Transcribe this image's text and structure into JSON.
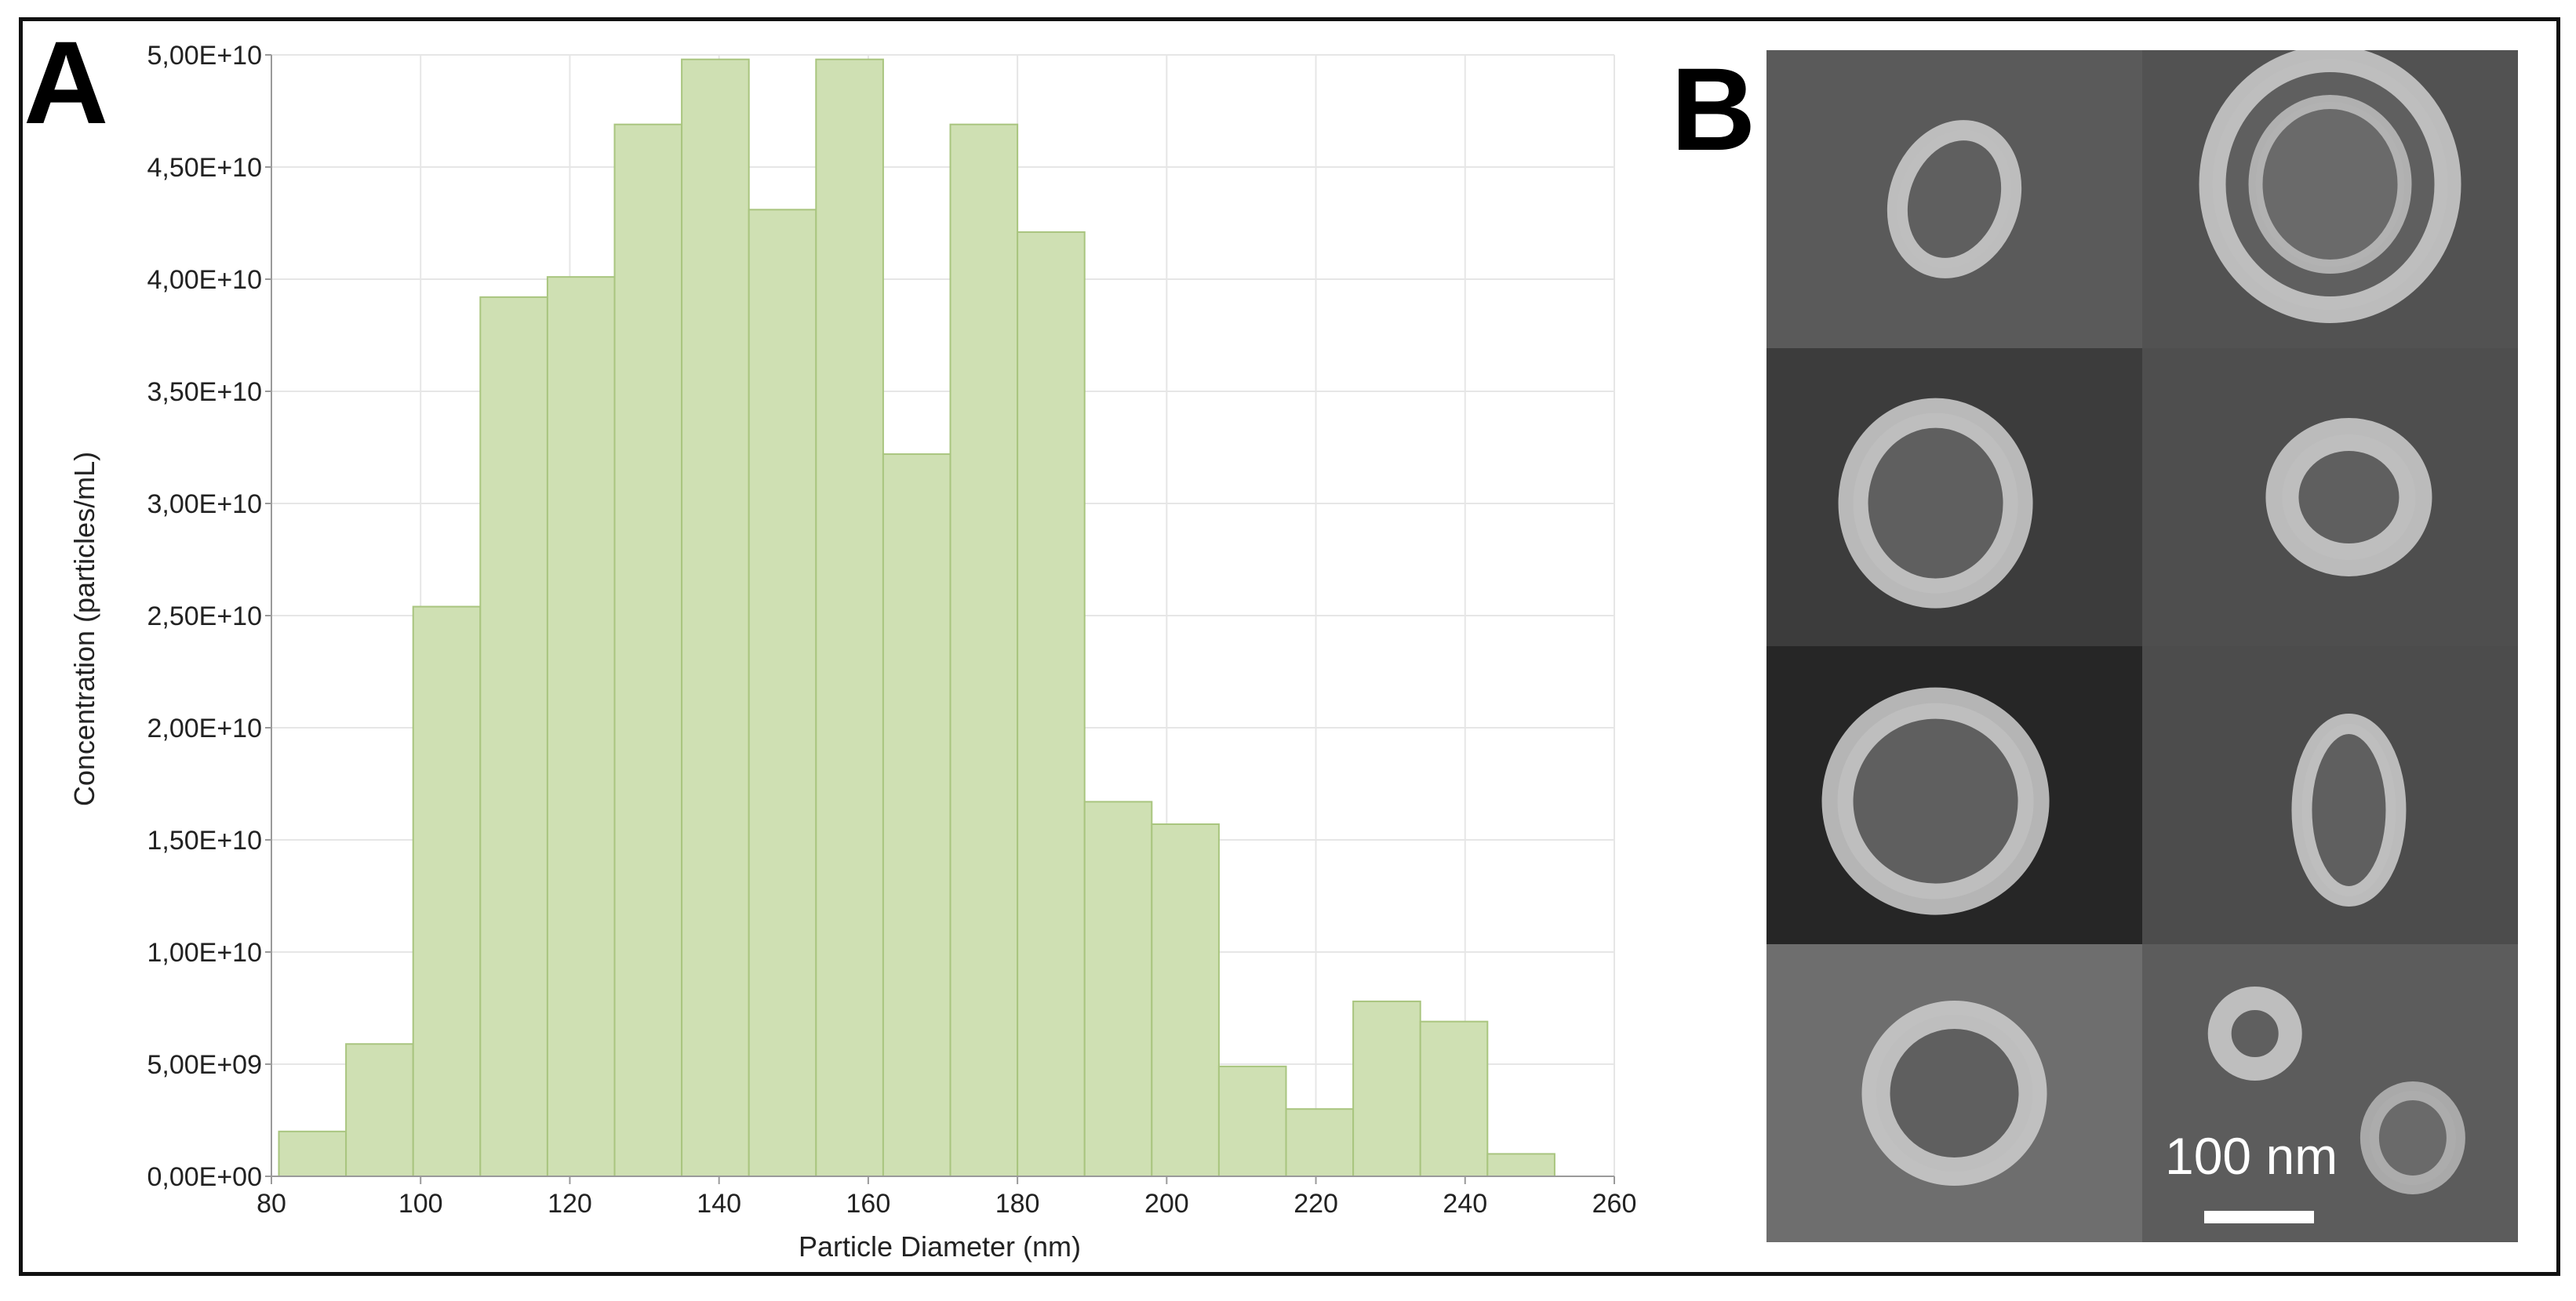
{
  "panels": {
    "a_label": "A",
    "b_label": "B"
  },
  "chart_data": {
    "type": "bar",
    "xlabel": "Particle Diameter (nm)",
    "ylabel": "Concentration (particles/mL)",
    "xlim": [
      80,
      260
    ],
    "ylim": [
      0,
      50000000000
    ],
    "x_ticks": [
      "80",
      "100",
      "120",
      "140",
      "160",
      "180",
      "200",
      "220",
      "240",
      "260"
    ],
    "y_ticks": [
      "0,00E+00",
      "5,00E+09",
      "1,00E+10",
      "1,50E+10",
      "2,00E+10",
      "2,50E+10",
      "3,00E+10",
      "3,50E+10",
      "4,00E+10",
      "4,50E+10",
      "5,00E+10"
    ],
    "grid": true,
    "bins": [
      {
        "x0": 81,
        "x1": 90,
        "value": 2000000000
      },
      {
        "x0": 90,
        "x1": 99,
        "value": 5900000000
      },
      {
        "x0": 99,
        "x1": 108,
        "value": 25400000000
      },
      {
        "x0": 108,
        "x1": 117,
        "value": 39200000000
      },
      {
        "x0": 117,
        "x1": 126,
        "value": 40100000000
      },
      {
        "x0": 126,
        "x1": 135,
        "value": 46900000000
      },
      {
        "x0": 135,
        "x1": 144,
        "value": 49800000000
      },
      {
        "x0": 144,
        "x1": 153,
        "value": 43100000000
      },
      {
        "x0": 153,
        "x1": 162,
        "value": 49800000000
      },
      {
        "x0": 162,
        "x1": 171,
        "value": 32200000000
      },
      {
        "x0": 171,
        "x1": 180,
        "value": 46900000000
      },
      {
        "x0": 180,
        "x1": 189,
        "value": 42100000000
      },
      {
        "x0": 189,
        "x1": 198,
        "value": 16700000000
      },
      {
        "x0": 198,
        "x1": 207,
        "value": 15700000000
      },
      {
        "x0": 207,
        "x1": 216,
        "value": 4900000000
      },
      {
        "x0": 216,
        "x1": 225,
        "value": 3000000000
      },
      {
        "x0": 225,
        "x1": 234,
        "value": 7800000000
      },
      {
        "x0": 234,
        "x1": 243,
        "value": 6900000000
      },
      {
        "x0": 243,
        "x1": 252,
        "value": 1000000000
      }
    ],
    "colors": {
      "bar_fill": "#cfe0b3",
      "bar_stroke": "#a9c57f",
      "grid": "#e6e6e6",
      "axis": "#9a9a9a"
    }
  },
  "micrographs": {
    "scale_label": "100 nm",
    "tile_count": 8
  }
}
